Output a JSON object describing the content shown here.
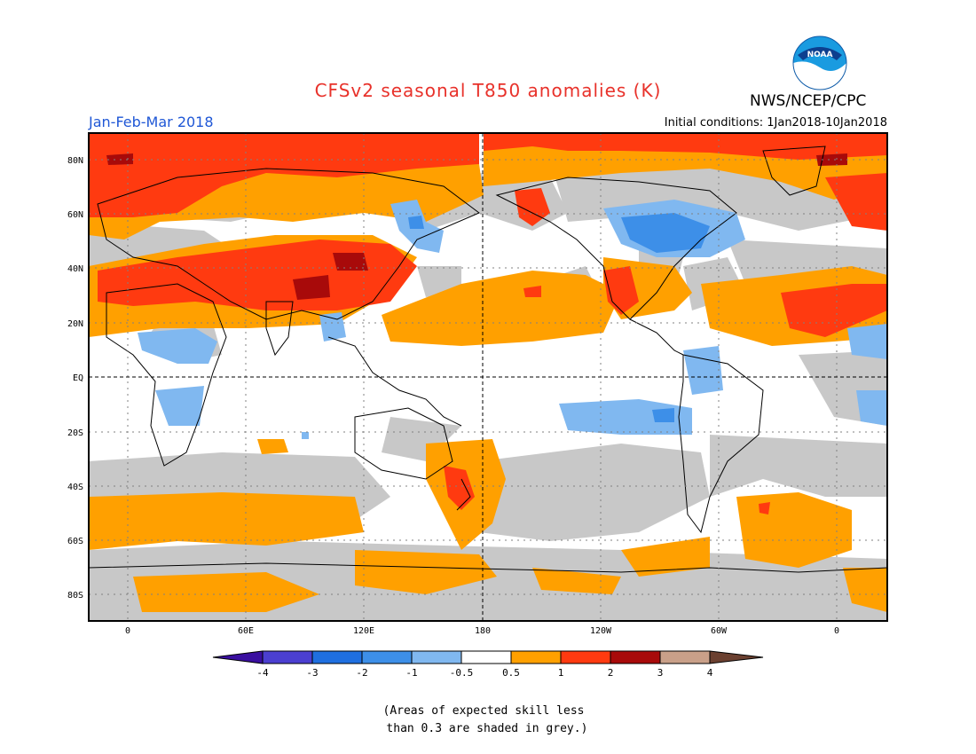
{
  "header": {
    "title": "CFSv2 seasonal T850 anomalies (K)",
    "org": "NWS/NCEP/CPC",
    "season": "Jan-Feb-Mar 2018",
    "initial_conditions": "Initial conditions: 1Jan2018-10Jan2018",
    "logo_text": "NOAA"
  },
  "axes": {
    "lat_labels": [
      "80N",
      "60N",
      "40N",
      "20N",
      "EQ",
      "20S",
      "40S",
      "60S",
      "80S"
    ],
    "lon_labels": [
      "0",
      "60E",
      "120E",
      "180",
      "120W",
      "60W",
      "0"
    ]
  },
  "legend": {
    "tick_labels": [
      "-4",
      "-3",
      "-2",
      "-1",
      "-0.5",
      "0.5",
      "1",
      "2",
      "3",
      "4"
    ],
    "colors": [
      "#3a0fa0",
      "#4b3fd0",
      "#1f6fe0",
      "#3d8fe8",
      "#80b8f0",
      "#ffffff",
      "#ffa000",
      "#ff3a10",
      "#a80a0a",
      "#c9a089",
      "#6b4030"
    ]
  },
  "colors": {
    "grey_skill": "#c8c8c8",
    "warm_1": "#ffa000",
    "warm_2": "#ff3a10",
    "warm_3": "#a80a0a",
    "cool_1": "#80b8f0",
    "cool_2": "#3d8fe8",
    "title": "#e8312a",
    "season": "#1f57d6"
  },
  "note": {
    "line1": "(Areas of expected skill less",
    "line2": " than 0.3 are shaded in grey.)"
  }
}
